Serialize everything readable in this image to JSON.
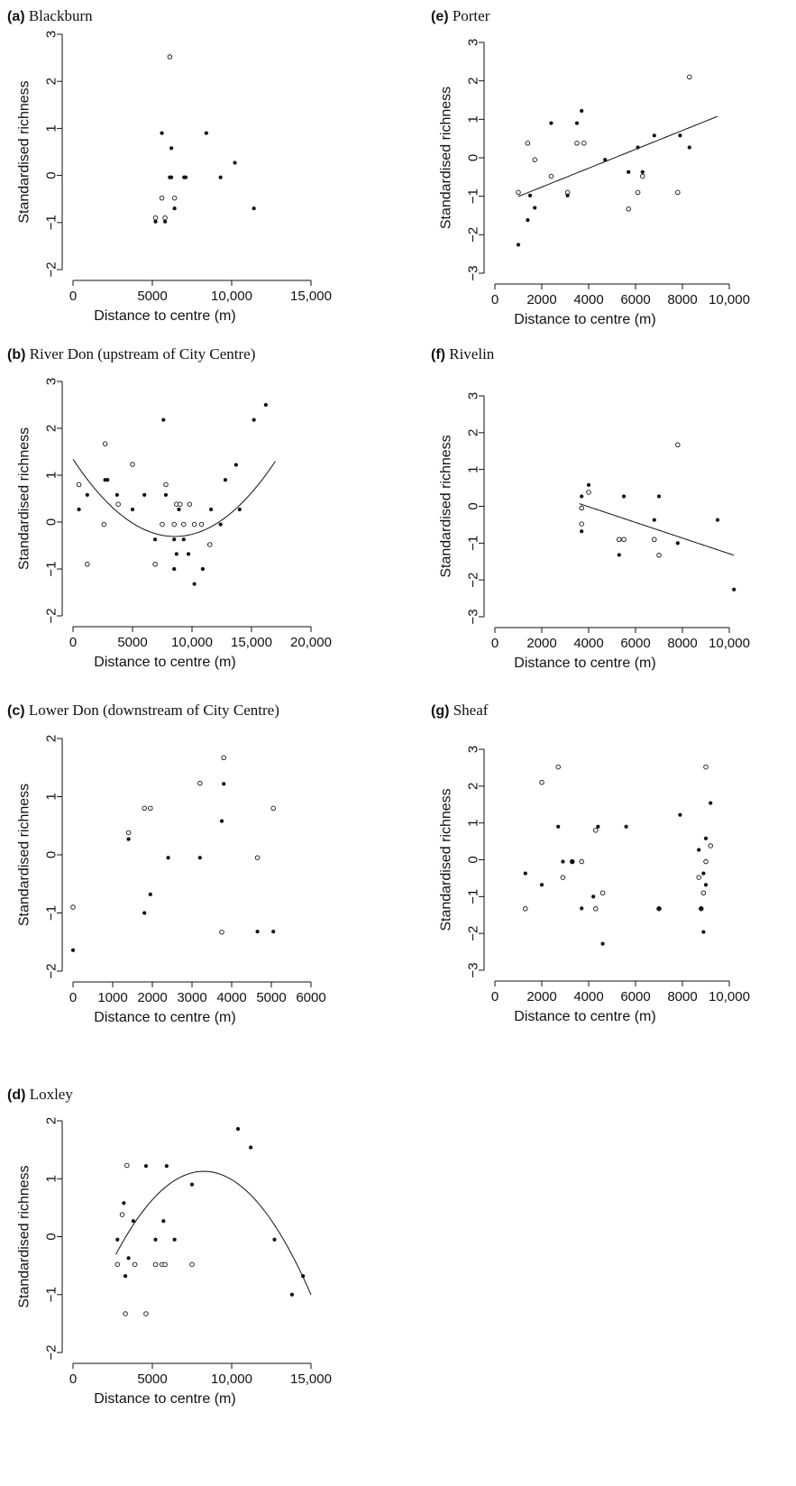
{
  "chart_data": [
    {
      "id": "a",
      "type": "scatter",
      "label": "(a)",
      "title": "Blackburn",
      "xlabel": "Distance to centre (m)",
      "ylabel": "Standardised richness",
      "xlim": [
        0,
        15000
      ],
      "ylim": [
        -2,
        3
      ],
      "xticks": [
        0,
        5000,
        10000,
        15000
      ],
      "xticklabels": [
        "0",
        "5000",
        "10,000",
        "15,000"
      ],
      "yticks": [
        -2,
        -1,
        0,
        1,
        2,
        3
      ],
      "yticklabels": [
        "−2",
        "−1",
        "0",
        "1",
        "2",
        "3"
      ],
      "open": [
        [
          6100,
          2.52
        ],
        [
          5600,
          -0.48
        ],
        [
          6400,
          -0.48
        ],
        [
          5200,
          -0.9
        ],
        [
          5800,
          -0.9
        ]
      ],
      "filled": [
        [
          5600,
          0.9
        ],
        [
          8400,
          0.9
        ],
        [
          6200,
          0.58
        ],
        [
          10200,
          0.27
        ],
        [
          6100,
          -0.04
        ],
        [
          6200,
          -0.04
        ],
        [
          7000,
          -0.04
        ],
        [
          7100,
          -0.04
        ],
        [
          9300,
          -0.04
        ],
        [
          6400,
          -0.7
        ],
        [
          11400,
          -0.7
        ],
        [
          5200,
          -0.98
        ],
        [
          5800,
          -0.98
        ]
      ],
      "fit": null
    },
    {
      "id": "b",
      "type": "scatter",
      "label": "(b)",
      "title": "River Don (upstream of City Centre)",
      "xlabel": "Distance to centre (m)",
      "ylabel": "Standardised richness",
      "xlim": [
        0,
        20000
      ],
      "ylim": [
        -2,
        3
      ],
      "xticks": [
        0,
        5000,
        10000,
        15000,
        20000
      ],
      "xticklabels": [
        "0",
        "5000",
        "10,000",
        "15,000",
        "20,000"
      ],
      "yticks": [
        -2,
        -1,
        0,
        1,
        2,
        3
      ],
      "yticklabels": [
        "−2",
        "−1",
        "0",
        "1",
        "2",
        "3"
      ],
      "open": [
        [
          500,
          0.8
        ],
        [
          2700,
          1.67
        ],
        [
          5000,
          1.23
        ],
        [
          7800,
          0.8
        ],
        [
          3800,
          0.38
        ],
        [
          8700,
          0.38
        ],
        [
          9000,
          0.38
        ],
        [
          9800,
          0.38
        ],
        [
          2600,
          -0.05
        ],
        [
          7500,
          -0.05
        ],
        [
          8500,
          -0.05
        ],
        [
          9300,
          -0.05
        ],
        [
          10200,
          -0.05
        ],
        [
          10800,
          -0.05
        ],
        [
          11500,
          -0.48
        ],
        [
          1200,
          -0.9
        ],
        [
          6900,
          -0.9
        ]
      ],
      "filled": [
        [
          7600,
          2.18
        ],
        [
          15200,
          2.18
        ],
        [
          16200,
          2.5
        ],
        [
          13700,
          1.22
        ],
        [
          2700,
          0.9
        ],
        [
          2900,
          0.9
        ],
        [
          12800,
          0.9
        ],
        [
          1200,
          0.58
        ],
        [
          3700,
          0.58
        ],
        [
          6000,
          0.58
        ],
        [
          7800,
          0.58
        ],
        [
          500,
          0.27
        ],
        [
          5000,
          0.27
        ],
        [
          8900,
          0.27
        ],
        [
          11600,
          0.27
        ],
        [
          14000,
          0.27
        ],
        [
          6900,
          -0.37
        ],
        [
          8500,
          -0.37
        ],
        [
          9300,
          -0.37
        ],
        [
          12400,
          -0.05
        ],
        [
          8700,
          -0.68
        ],
        [
          9700,
          -0.68
        ],
        [
          8500,
          -1.0
        ],
        [
          10900,
          -1.0
        ],
        [
          10200,
          -1.32
        ]
      ],
      "fit": {
        "kind": "quadratic",
        "coef": [
          1.3408,
          -0.000385,
          2.249e-08
        ],
        "range": [
          0,
          17000
        ]
      }
    },
    {
      "id": "c",
      "type": "scatter",
      "label": "(c)",
      "title": "Lower Don (downstream of City Centre)",
      "xlabel": "Distance to centre (m)",
      "ylabel": "Standardised richness",
      "xlim": [
        0,
        6000
      ],
      "ylim": [
        -2,
        2
      ],
      "xticks": [
        0,
        1000,
        2000,
        3000,
        4000,
        5000,
        6000
      ],
      "xticklabels": [
        "0",
        "1000",
        "2000",
        "3000",
        "4000",
        "5000",
        "6000"
      ],
      "yticks": [
        -2,
        -1,
        0,
        1,
        2
      ],
      "yticklabels": [
        "−2",
        "−1",
        "0",
        "1",
        "2"
      ],
      "open": [
        [
          3800,
          1.67
        ],
        [
          3200,
          1.23
        ],
        [
          1800,
          0.8
        ],
        [
          1950,
          0.8
        ],
        [
          5050,
          0.8
        ],
        [
          1400,
          0.38
        ],
        [
          4650,
          -0.05
        ],
        [
          0,
          -0.9
        ],
        [
          3750,
          -1.33
        ]
      ],
      "filled": [
        [
          3800,
          1.22
        ],
        [
          3750,
          0.58
        ],
        [
          1400,
          0.27
        ],
        [
          2400,
          -0.05
        ],
        [
          3200,
          -0.05
        ],
        [
          1950,
          -0.68
        ],
        [
          1800,
          -1.0
        ],
        [
          4650,
          -1.32
        ],
        [
          5050,
          -1.32
        ],
        [
          0,
          -1.64
        ]
      ],
      "fit": null
    },
    {
      "id": "d",
      "type": "scatter",
      "label": "(d)",
      "title": "Loxley",
      "xlabel": "Distance to centre (m)",
      "ylabel": "Standardised richness",
      "xlim": [
        0,
        15000
      ],
      "ylim": [
        -2,
        2
      ],
      "xticks": [
        0,
        5000,
        10000,
        15000
      ],
      "xticklabels": [
        "0",
        "5000",
        "10,000",
        "15,000"
      ],
      "yticks": [
        -2,
        -1,
        0,
        1,
        2
      ],
      "yticklabels": [
        "−2",
        "−1",
        "0",
        "1",
        "2"
      ],
      "open": [
        [
          3400,
          1.23
        ],
        [
          3100,
          0.38
        ],
        [
          2800,
          -0.48
        ],
        [
          3900,
          -0.48
        ],
        [
          5200,
          -0.48
        ],
        [
          5600,
          -0.48
        ],
        [
          5800,
          -0.48
        ],
        [
          7500,
          -0.48
        ],
        [
          3300,
          -1.33
        ],
        [
          4600,
          -1.33
        ]
      ],
      "filled": [
        [
          10400,
          1.86
        ],
        [
          11200,
          1.54
        ],
        [
          4600,
          1.22
        ],
        [
          5900,
          1.22
        ],
        [
          7500,
          0.9
        ],
        [
          3200,
          0.58
        ],
        [
          3800,
          0.27
        ],
        [
          5700,
          0.27
        ],
        [
          2800,
          -0.05
        ],
        [
          5200,
          -0.05
        ],
        [
          6400,
          -0.05
        ],
        [
          12700,
          -0.05
        ],
        [
          3500,
          -0.37
        ],
        [
          3300,
          -0.68
        ],
        [
          14500,
          -0.68
        ],
        [
          13800,
          -1.0
        ]
      ],
      "fit": {
        "kind": "quadratic",
        "coef": [
          -2.0458,
          0.00077,
          -4.67e-08
        ],
        "range": [
          2700,
          15000
        ]
      }
    },
    {
      "id": "e",
      "type": "scatter",
      "label": "(e)",
      "title": "Porter",
      "xlabel": "Distance to centre (m)",
      "ylabel": "Standardised richness",
      "xlim": [
        0,
        10000
      ],
      "ylim": [
        -3,
        3
      ],
      "xticks": [
        0,
        2000,
        4000,
        6000,
        8000,
        10000
      ],
      "xticklabels": [
        "0",
        "2000",
        "4000",
        "6000",
        "8000",
        "10,000"
      ],
      "yticks": [
        -3,
        -2,
        -1,
        0,
        1,
        2,
        3
      ],
      "yticklabels": [
        "−3",
        "−2",
        "−1",
        "0",
        "1",
        "2",
        "3"
      ],
      "open": [
        [
          8300,
          2.1
        ],
        [
          1400,
          0.38
        ],
        [
          3500,
          0.38
        ],
        [
          3800,
          0.38
        ],
        [
          1700,
          -0.05
        ],
        [
          2400,
          -0.48
        ],
        [
          6300,
          -0.48
        ],
        [
          1000,
          -0.9
        ],
        [
          3100,
          -0.9
        ],
        [
          6100,
          -0.9
        ],
        [
          7800,
          -0.9
        ],
        [
          5700,
          -1.33
        ]
      ],
      "filled": [
        [
          3700,
          1.22
        ],
        [
          2400,
          0.9
        ],
        [
          3500,
          0.9
        ],
        [
          6800,
          0.58
        ],
        [
          7900,
          0.58
        ],
        [
          6100,
          0.27
        ],
        [
          8300,
          0.27
        ],
        [
          4700,
          -0.05
        ],
        [
          5700,
          -0.37
        ],
        [
          6300,
          -0.37
        ],
        [
          1500,
          -0.98
        ],
        [
          3100,
          -0.98
        ],
        [
          1700,
          -1.3
        ],
        [
          1400,
          -1.62
        ],
        [
          1000,
          -2.26
        ]
      ],
      "fit": {
        "kind": "linear",
        "coef": [
          -1.25,
          0.000245
        ],
        "range": [
          1000,
          9500
        ]
      }
    },
    {
      "id": "f",
      "type": "scatter",
      "label": "(f)",
      "title": "Rivelin",
      "xlabel": "Distance to centre (m)",
      "ylabel": "Standardised richness",
      "xlim": [
        0,
        10000
      ],
      "ylim": [
        -3,
        3
      ],
      "xticks": [
        0,
        2000,
        4000,
        6000,
        8000,
        10000
      ],
      "xticklabels": [
        "0",
        "2000",
        "4000",
        "6000",
        "8000",
        "10,000"
      ],
      "yticks": [
        -3,
        -2,
        -1,
        0,
        1,
        2,
        3
      ],
      "yticklabels": [
        "−3",
        "−2",
        "−1",
        "0",
        "1",
        "2",
        "3"
      ],
      "open": [
        [
          7800,
          1.67
        ],
        [
          4000,
          0.38
        ],
        [
          3700,
          -0.05
        ],
        [
          3700,
          -0.48
        ],
        [
          5300,
          -0.9
        ],
        [
          5500,
          -0.9
        ],
        [
          6800,
          -0.9
        ],
        [
          7000,
          -1.33
        ]
      ],
      "filled": [
        [
          4000,
          0.58
        ],
        [
          3700,
          0.27
        ],
        [
          5500,
          0.27
        ],
        [
          7000,
          0.27
        ],
        [
          6800,
          -0.37
        ],
        [
          9500,
          -0.37
        ],
        [
          3700,
          -0.68
        ],
        [
          7800,
          -1.0
        ],
        [
          5300,
          -1.32
        ],
        [
          10200,
          -2.26
        ]
      ],
      "fit": {
        "kind": "linear",
        "coef": [
          0.8375,
          -0.0002125
        ],
        "range": [
          3600,
          10200
        ]
      }
    },
    {
      "id": "g",
      "type": "scatter",
      "label": "(g)",
      "title": "Sheaf",
      "xlabel": "Distance to centre (m)",
      "ylabel": "Standardised richness",
      "xlim": [
        0,
        10000
      ],
      "ylim": [
        -3,
        3
      ],
      "xticks": [
        0,
        2000,
        4000,
        6000,
        8000,
        10000
      ],
      "xticklabels": [
        "0",
        "2000",
        "4000",
        "6000",
        "8000",
        "10,000"
      ],
      "yticks": [
        -3,
        -2,
        -1,
        0,
        1,
        2,
        3
      ],
      "yticklabels": [
        "−3",
        "−2",
        "−1",
        "0",
        "1",
        "2",
        "3"
      ],
      "open": [
        [
          2700,
          2.52
        ],
        [
          9000,
          2.52
        ],
        [
          2000,
          2.1
        ],
        [
          4300,
          0.8
        ],
        [
          9200,
          0.38
        ],
        [
          3300,
          -0.05
        ],
        [
          3700,
          -0.05
        ],
        [
          9000,
          -0.05
        ],
        [
          2900,
          -0.48
        ],
        [
          8700,
          -0.48
        ],
        [
          4600,
          -0.9
        ],
        [
          8900,
          -0.9
        ],
        [
          1300,
          -1.33
        ],
        [
          4300,
          -1.33
        ],
        [
          7000,
          -1.33
        ],
        [
          8800,
          -1.33
        ]
      ],
      "filled": [
        [
          9200,
          1.54
        ],
        [
          7900,
          1.22
        ],
        [
          2700,
          0.9
        ],
        [
          4400,
          0.9
        ],
        [
          5600,
          0.9
        ],
        [
          9000,
          0.58
        ],
        [
          8700,
          0.27
        ],
        [
          2900,
          -0.05
        ],
        [
          3300,
          -0.05
        ],
        [
          1300,
          -0.37
        ],
        [
          8900,
          -0.37
        ],
        [
          2000,
          -0.68
        ],
        [
          9000,
          -0.68
        ],
        [
          4200,
          -1.0
        ],
        [
          3700,
          -1.32
        ],
        [
          7000,
          -1.32
        ],
        [
          8800,
          -1.32
        ],
        [
          8900,
          -1.96
        ],
        [
          4600,
          -2.28
        ]
      ],
      "fit": null
    }
  ]
}
